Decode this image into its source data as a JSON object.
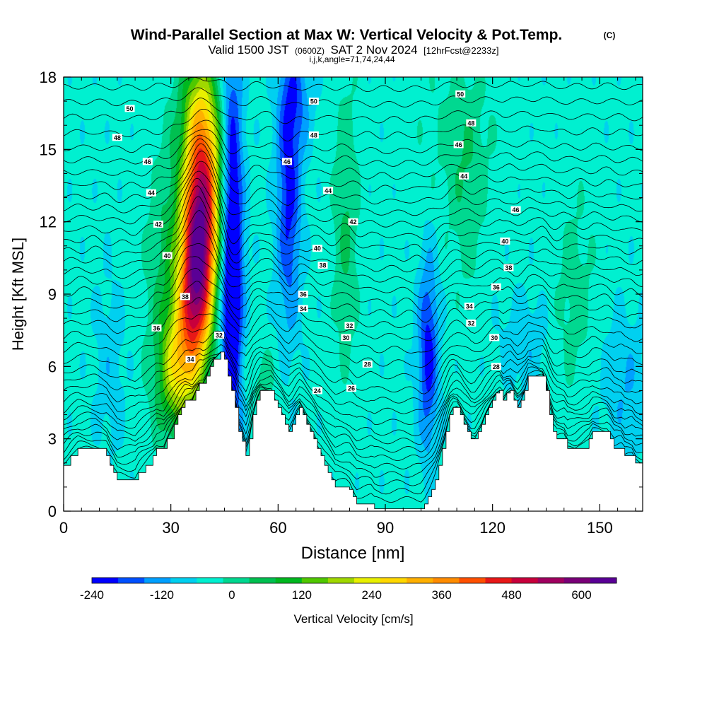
{
  "header": {
    "title": "Wind-Parallel Section at Max W: Vertical Velocity & Pot.Temp.",
    "copyright": "(C)",
    "valid_prefix": "Valid 1500 JST",
    "valid_utc": "(0600Z)",
    "valid_date": "SAT 2 Nov 2024",
    "forecast": "[12hrFcst@2233z]",
    "params": "i,j,k,angle=71,74,24,44"
  },
  "chart_data": {
    "type": "heatmap",
    "xlabel": "Distance [nm]",
    "ylabel": "Height [Kft MSL]",
    "xlim": [
      0,
      162
    ],
    "ylim": [
      0,
      18
    ],
    "x_ticks": [
      0,
      30,
      60,
      90,
      120,
      150
    ],
    "y_ticks": [
      0,
      3,
      6,
      9,
      12,
      15,
      18
    ],
    "terrain": [
      [
        0,
        1.9
      ],
      [
        2,
        2.3
      ],
      [
        4,
        2.6
      ],
      [
        8,
        2.6
      ],
      [
        9,
        2.6
      ],
      [
        12,
        2.3
      ],
      [
        13,
        1.9
      ],
      [
        14,
        1.6
      ],
      [
        15,
        1.3
      ],
      [
        20,
        1.3
      ],
      [
        21,
        1.6
      ],
      [
        23,
        1.9
      ],
      [
        25,
        2.3
      ],
      [
        26,
        2.6
      ],
      [
        28,
        2.6
      ],
      [
        29,
        3.0
      ],
      [
        31,
        3.6
      ],
      [
        32,
        4.0
      ],
      [
        33,
        4.3
      ],
      [
        34,
        4.6
      ],
      [
        36,
        4.6
      ],
      [
        37,
        5.0
      ],
      [
        38,
        5.3
      ],
      [
        39,
        5.3
      ],
      [
        40,
        5.6
      ],
      [
        41,
        6.0
      ],
      [
        42,
        6.3
      ],
      [
        44,
        6.6
      ],
      [
        45,
        6.3
      ],
      [
        46,
        5.6
      ],
      [
        47,
        5.0
      ],
      [
        48,
        4.3
      ],
      [
        49,
        3.3
      ],
      [
        50,
        2.9
      ],
      [
        51,
        2.3
      ],
      [
        52,
        3.0
      ],
      [
        53,
        4.0
      ],
      [
        54,
        4.6
      ],
      [
        55,
        5.0
      ],
      [
        56,
        5.0
      ],
      [
        57,
        5.0
      ],
      [
        58,
        5.0
      ],
      [
        59,
        4.6
      ],
      [
        60,
        4.3
      ],
      [
        61,
        4.0
      ],
      [
        62,
        3.6
      ],
      [
        63,
        3.3
      ],
      [
        64,
        3.6
      ],
      [
        65,
        4.0
      ],
      [
        66,
        4.3
      ],
      [
        67,
        4.0
      ],
      [
        68,
        3.6
      ],
      [
        69,
        3.3
      ],
      [
        70,
        3.0
      ],
      [
        71,
        2.6
      ],
      [
        72,
        2.3
      ],
      [
        73,
        1.9
      ],
      [
        74,
        1.6
      ],
      [
        75,
        1.3
      ],
      [
        76,
        1.0
      ],
      [
        77,
        1.0
      ],
      [
        79,
        1.0
      ],
      [
        80,
        0.9
      ],
      [
        81,
        0.6
      ],
      [
        82,
        0.3
      ],
      [
        84,
        0.3
      ],
      [
        86,
        0.3
      ],
      [
        87,
        0.1
      ],
      [
        90,
        0.1
      ],
      [
        95,
        0.1
      ],
      [
        100,
        0.1
      ],
      [
        101,
        0.3
      ],
      [
        102,
        0.6
      ],
      [
        103,
        0.9
      ],
      [
        104,
        1.3
      ],
      [
        105,
        1.9
      ],
      [
        106,
        2.6
      ],
      [
        107,
        3.3
      ],
      [
        108,
        4.0
      ],
      [
        109,
        4.3
      ],
      [
        110,
        4.3
      ],
      [
        111,
        4.0
      ],
      [
        112,
        3.6
      ],
      [
        113,
        3.3
      ],
      [
        114,
        3.0
      ],
      [
        115,
        3.0
      ],
      [
        116,
        3.3
      ],
      [
        117,
        3.6
      ],
      [
        118,
        4.0
      ],
      [
        119,
        4.3
      ],
      [
        120,
        4.6
      ],
      [
        121,
        4.9
      ],
      [
        122,
        5.0
      ],
      [
        123,
        4.6
      ],
      [
        124,
        4.9
      ],
      [
        125,
        5.0
      ],
      [
        126,
        4.6
      ],
      [
        127,
        4.3
      ],
      [
        128,
        4.6
      ],
      [
        129,
        5.0
      ],
      [
        130,
        5.6
      ],
      [
        134,
        5.6
      ],
      [
        135,
        5.0
      ],
      [
        136,
        4.0
      ],
      [
        137,
        3.3
      ],
      [
        138,
        3.0
      ],
      [
        140,
        3.0
      ],
      [
        141,
        2.6
      ],
      [
        143,
        2.6
      ],
      [
        147,
        3.0
      ],
      [
        148,
        3.3
      ],
      [
        152,
        3.3
      ],
      [
        153,
        3.0
      ],
      [
        154,
        2.6
      ],
      [
        156,
        2.6
      ],
      [
        157,
        2.3
      ],
      [
        159,
        2.3
      ],
      [
        160,
        2.0
      ],
      [
        162,
        1.9
      ]
    ],
    "w_field": [
      {
        "x": 38,
        "y": 11.0,
        "sx": 3.2,
        "sy": 3.0,
        "w": 620
      },
      {
        "x": 40,
        "y": 13.5,
        "sx": 4.0,
        "sy": 2.6,
        "w": 330
      },
      {
        "x": 36,
        "y": 8.6,
        "sx": 3.2,
        "sy": 2.2,
        "w": 330
      },
      {
        "x": 32,
        "y": 5.8,
        "sx": 3.6,
        "sy": 1.6,
        "w": 260
      },
      {
        "x": 38,
        "y": 16.8,
        "sx": 3.6,
        "sy": 1.8,
        "w": 200
      },
      {
        "x": 30,
        "y": 9.0,
        "sx": 4.5,
        "sy": 4.5,
        "w": 140
      },
      {
        "x": 47,
        "y": 10.5,
        "sx": 2.2,
        "sy": 5.8,
        "w": -380
      },
      {
        "x": 63,
        "y": 13.0,
        "sx": 2.4,
        "sy": 3.8,
        "w": -220
      },
      {
        "x": 65,
        "y": 17.2,
        "sx": 3.2,
        "sy": 1.6,
        "w": -120
      },
      {
        "x": 102,
        "y": 6.5,
        "sx": 2.0,
        "sy": 2.8,
        "w": -230
      },
      {
        "x": 129,
        "y": 7.0,
        "sx": 4.5,
        "sy": 1.4,
        "w": -70
      },
      {
        "x": 157,
        "y": 5.2,
        "sx": 4.5,
        "sy": 2.0,
        "w": -80
      },
      {
        "x": 13,
        "y": 6.0,
        "sx": 3.0,
        "sy": 2.5,
        "w": -60
      },
      {
        "x": 79,
        "y": 12.0,
        "sx": 2.5,
        "sy": 4.0,
        "w": 110
      },
      {
        "x": 113,
        "y": 13.0,
        "sx": 3.5,
        "sy": 3.0,
        "w": 70
      },
      {
        "x": 143,
        "y": 9.0,
        "sx": 4.0,
        "sy": 3.0,
        "w": 70
      },
      {
        "x": 55,
        "y": 5.6,
        "sx": 4.0,
        "sy": 1.0,
        "w": 60
      },
      {
        "x": 110,
        "y": 15.5,
        "sx": 8.0,
        "sy": 2.5,
        "w": 50
      }
    ],
    "isentropes": {
      "interval": 1,
      "min_level": 16,
      "max_level": 54,
      "anchor_heights": [
        [
          16,
          0.4
        ],
        [
          20,
          1.8
        ],
        [
          24,
          3.2
        ],
        [
          28,
          5.0
        ],
        [
          32,
          7.2
        ],
        [
          36,
          9.1
        ],
        [
          40,
          10.9
        ],
        [
          44,
          12.8
        ],
        [
          48,
          14.9
        ],
        [
          52,
          17.5
        ],
        [
          54,
          18.8
        ]
      ],
      "labels": [
        {
          "value": 50,
          "x": 18.5,
          "y": 16.7
        },
        {
          "value": 48,
          "x": 15,
          "y": 15.5
        },
        {
          "value": 46,
          "x": 23.5,
          "y": 14.5
        },
        {
          "value": 44,
          "x": 24.5,
          "y": 13.2
        },
        {
          "value": 42,
          "x": 26.5,
          "y": 11.9
        },
        {
          "value": 40,
          "x": 29,
          "y": 10.6
        },
        {
          "value": 38,
          "x": 34,
          "y": 8.9
        },
        {
          "value": 36,
          "x": 26,
          "y": 7.6
        },
        {
          "value": 34,
          "x": 35.5,
          "y": 6.3
        },
        {
          "value": 32,
          "x": 43.5,
          "y": 7.3
        },
        {
          "value": 50,
          "x": 70,
          "y": 17.0
        },
        {
          "value": 48,
          "x": 70,
          "y": 15.6
        },
        {
          "value": 46,
          "x": 62.5,
          "y": 14.5
        },
        {
          "value": 44,
          "x": 74,
          "y": 13.3
        },
        {
          "value": 42,
          "x": 81,
          "y": 12.0
        },
        {
          "value": 40,
          "x": 71,
          "y": 10.9
        },
        {
          "value": 38,
          "x": 72.5,
          "y": 10.2
        },
        {
          "value": 36,
          "x": 67,
          "y": 9.0
        },
        {
          "value": 34,
          "x": 67,
          "y": 8.4
        },
        {
          "value": 32,
          "x": 80,
          "y": 7.7
        },
        {
          "value": 30,
          "x": 79,
          "y": 7.2
        },
        {
          "value": 28,
          "x": 85,
          "y": 6.1
        },
        {
          "value": 26,
          "x": 80.5,
          "y": 5.1
        },
        {
          "value": 24,
          "x": 71,
          "y": 5.0
        },
        {
          "value": 50,
          "x": 111,
          "y": 17.3
        },
        {
          "value": 48,
          "x": 114,
          "y": 16.1
        },
        {
          "value": 46,
          "x": 110.5,
          "y": 15.2
        },
        {
          "value": 44,
          "x": 112,
          "y": 13.9
        },
        {
          "value": 46,
          "x": 126.5,
          "y": 12.5
        },
        {
          "value": 40,
          "x": 123.5,
          "y": 11.2
        },
        {
          "value": 38,
          "x": 124.5,
          "y": 10.1
        },
        {
          "value": 36,
          "x": 121,
          "y": 9.3
        },
        {
          "value": 34,
          "x": 113.5,
          "y": 8.5
        },
        {
          "value": 32,
          "x": 114,
          "y": 7.8
        },
        {
          "value": 30,
          "x": 120.5,
          "y": 7.2
        },
        {
          "value": 28,
          "x": 121,
          "y": 6.0
        }
      ]
    },
    "colorbar": {
      "label": "Vertical Velocity [cm/s]",
      "min": -240,
      "max": 660,
      "step": 60,
      "tick_values": [
        -240,
        -120,
        0,
        120,
        240,
        360,
        480,
        600
      ],
      "tick_labels": [
        "-240",
        "-120",
        "0",
        "120",
        "240",
        "360",
        "480",
        "600"
      ],
      "colors": [
        "#0000ff",
        "#0050ff",
        "#00a0ff",
        "#00d0f0",
        "#00f0d0",
        "#00d890",
        "#00c050",
        "#00b820",
        "#50c800",
        "#a0d800",
        "#e8f000",
        "#ffd800",
        "#ffb000",
        "#ff8c00",
        "#ff5000",
        "#e81818",
        "#c8003c",
        "#a00060",
        "#7a0078",
        "#5a0096"
      ]
    }
  }
}
